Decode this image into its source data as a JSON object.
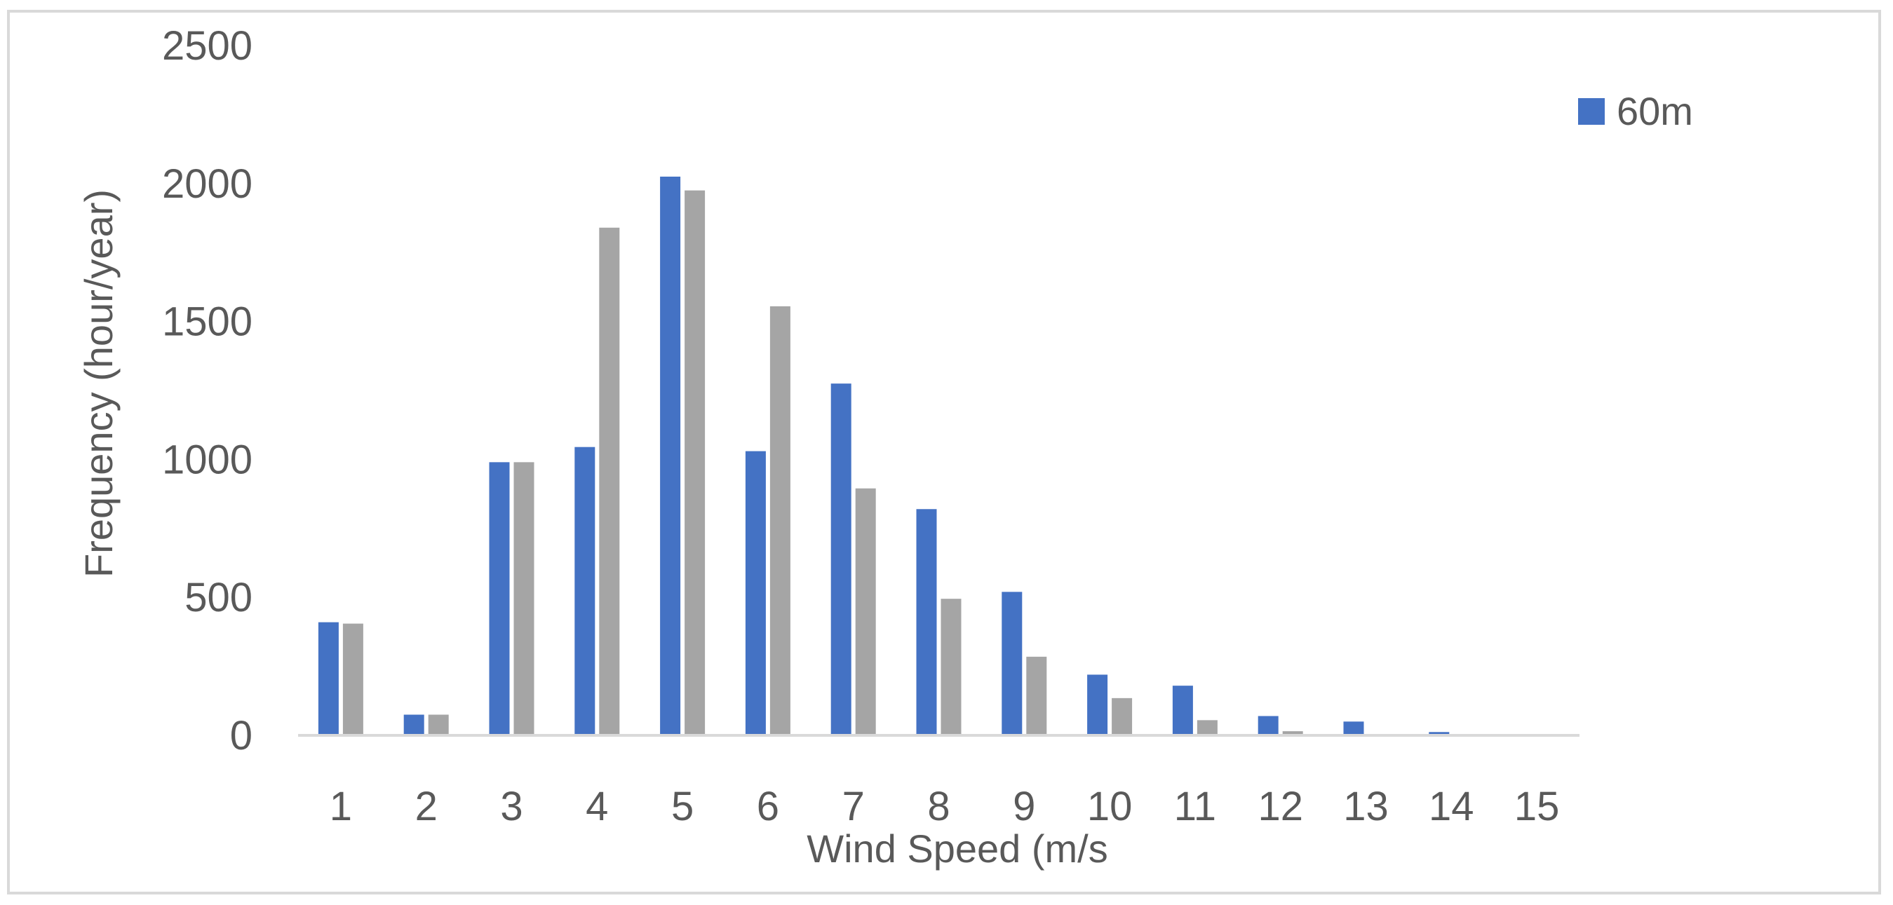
{
  "chart_data": {
    "type": "bar",
    "title": "",
    "xlabel": "Wind Speed (m/s",
    "ylabel": "Frequency (hour/year)",
    "ylim": [
      0,
      2500
    ],
    "yticks": [
      "0",
      "500",
      "1000",
      "1500",
      "2000",
      "2500"
    ],
    "categories": [
      "1",
      "2",
      "3",
      "4",
      "5",
      "6",
      "7",
      "8",
      "9",
      "10",
      "11",
      "12",
      "13",
      "14",
      "15"
    ],
    "series": [
      {
        "name": "60m",
        "color": "#4472c4",
        "values": [
          410,
          75,
          990,
          1045,
          2025,
          1030,
          1275,
          820,
          520,
          220,
          180,
          70,
          50,
          12,
          0
        ]
      },
      {
        "color": "#a5a5a5",
        "values": [
          405,
          75,
          990,
          1840,
          1975,
          1555,
          895,
          495,
          285,
          135,
          55,
          15,
          0,
          0,
          0
        ]
      }
    ],
    "legend": {
      "position": "top-right",
      "entries": [
        "60m"
      ]
    },
    "grid": false
  }
}
